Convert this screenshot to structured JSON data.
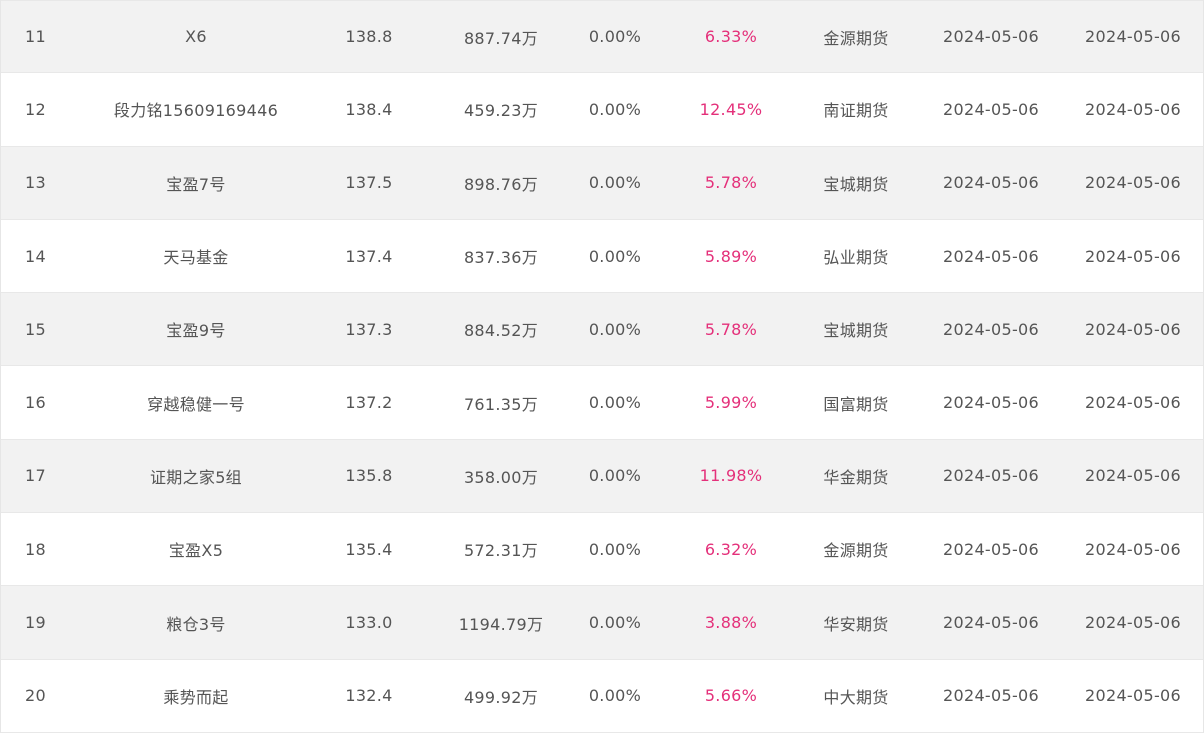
{
  "rows": [
    {
      "rank": "11",
      "name": "X6",
      "score": "138.8",
      "amount": "887.74万",
      "drawdown": "0.00%",
      "return": "6.33%",
      "company": "金源期货",
      "date1": "2024-05-06",
      "date2": "2024-05-06"
    },
    {
      "rank": "12",
      "name": "段力铭15609169446",
      "score": "138.4",
      "amount": "459.23万",
      "drawdown": "0.00%",
      "return": "12.45%",
      "company": "南证期货",
      "date1": "2024-05-06",
      "date2": "2024-05-06"
    },
    {
      "rank": "13",
      "name": "宝盈7号",
      "score": "137.5",
      "amount": "898.76万",
      "drawdown": "0.00%",
      "return": "5.78%",
      "company": "宝城期货",
      "date1": "2024-05-06",
      "date2": "2024-05-06"
    },
    {
      "rank": "14",
      "name": "天马基金",
      "score": "137.4",
      "amount": "837.36万",
      "drawdown": "0.00%",
      "return": "5.89%",
      "company": "弘业期货",
      "date1": "2024-05-06",
      "date2": "2024-05-06"
    },
    {
      "rank": "15",
      "name": "宝盈9号",
      "score": "137.3",
      "amount": "884.52万",
      "drawdown": "0.00%",
      "return": "5.78%",
      "company": "宝城期货",
      "date1": "2024-05-06",
      "date2": "2024-05-06"
    },
    {
      "rank": "16",
      "name": "穿越稳健一号",
      "score": "137.2",
      "amount": "761.35万",
      "drawdown": "0.00%",
      "return": "5.99%",
      "company": "国富期货",
      "date1": "2024-05-06",
      "date2": "2024-05-06"
    },
    {
      "rank": "17",
      "name": "证期之家5组",
      "score": "135.8",
      "amount": "358.00万",
      "drawdown": "0.00%",
      "return": "11.98%",
      "company": "华金期货",
      "date1": "2024-05-06",
      "date2": "2024-05-06"
    },
    {
      "rank": "18",
      "name": "宝盈X5",
      "score": "135.4",
      "amount": "572.31万",
      "drawdown": "0.00%",
      "return": "6.32%",
      "company": "金源期货",
      "date1": "2024-05-06",
      "date2": "2024-05-06"
    },
    {
      "rank": "19",
      "name": "粮仓3号",
      "score": "133.0",
      "amount": "1194.79万",
      "drawdown": "0.00%",
      "return": "3.88%",
      "company": "华安期货",
      "date1": "2024-05-06",
      "date2": "2024-05-06"
    },
    {
      "rank": "20",
      "name": "乘势而起",
      "score": "132.4",
      "amount": "499.92万",
      "drawdown": "0.00%",
      "return": "5.66%",
      "company": "中大期货",
      "date1": "2024-05-06",
      "date2": "2024-05-06"
    }
  ],
  "colors": {
    "return_text": "#e4307a",
    "row_alt_bg": "#f2f2f2",
    "text": "#555555"
  }
}
